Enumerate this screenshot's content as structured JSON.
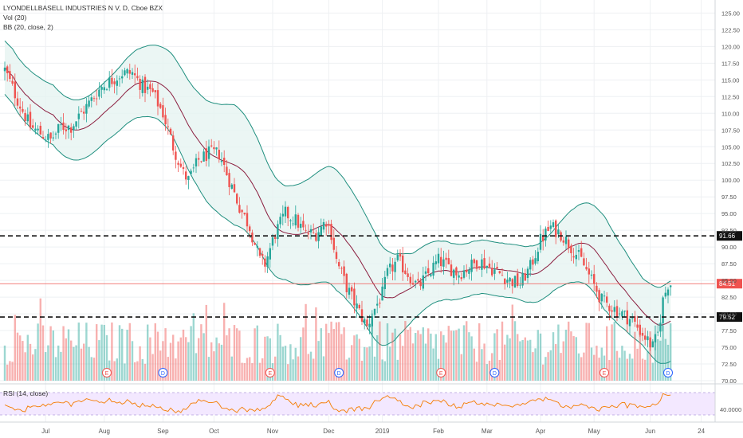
{
  "header": {
    "title": "LYONDELLBASELL INDUSTRIES N V, D, Cboe BZX",
    "vol_label": "Vol (20)",
    "bb_label": "BB (20, close, 2)",
    "rsi_label": "RSI (14, close)"
  },
  "colors": {
    "up": "#26a69a",
    "down": "#ef5350",
    "band": "#1e8e7e",
    "band_fill": "#e6f4f1",
    "basis": "#8b1e3f",
    "rsi_line": "#f57c00",
    "rsi_bg": "#f3e8ff",
    "price_line": "#ef5350"
  },
  "chart_data": {
    "type": "candlestick",
    "y_axis": {
      "range": [
        70,
        126
      ],
      "ticks": [
        "125.00",
        "122.50",
        "120.00",
        "117.50",
        "115.00",
        "112.50",
        "110.00",
        "107.50",
        "105.00",
        "102.50",
        "100.00",
        "97.50",
        "95.00",
        "92.50",
        "90.00",
        "87.50",
        "85.00",
        "82.50",
        "80.00",
        "77.50",
        "75.00",
        "72.50",
        "70.00"
      ],
      "rsi_tick": "40.0000"
    },
    "x_axis": {
      "ticks": [
        {
          "label": "Jul",
          "day": 16
        },
        {
          "label": "Aug",
          "day": 39
        },
        {
          "label": "Sep",
          "day": 62
        },
        {
          "label": "Oct",
          "day": 82
        },
        {
          "label": "Nov",
          "day": 105
        },
        {
          "label": "Dec",
          "day": 127
        },
        {
          "label": "2019",
          "day": 148
        },
        {
          "label": "Feb",
          "day": 170
        },
        {
          "label": "Mar",
          "day": 189
        },
        {
          "label": "Apr",
          "day": 210
        },
        {
          "label": "May",
          "day": 231
        },
        {
          "label": "Jun",
          "day": 253
        },
        {
          "label": "24",
          "day": 273
        }
      ]
    },
    "price_anchors": [
      [
        0,
        116.5
      ],
      [
        5,
        112
      ],
      [
        10,
        108
      ],
      [
        14,
        107
      ],
      [
        18,
        106
      ],
      [
        22,
        108
      ],
      [
        26,
        108
      ],
      [
        30,
        110
      ],
      [
        34,
        112
      ],
      [
        38,
        114
      ],
      [
        42,
        115
      ],
      [
        46,
        116
      ],
      [
        50,
        116
      ],
      [
        54,
        114
      ],
      [
        58,
        113
      ],
      [
        62,
        110
      ],
      [
        66,
        105
      ],
      [
        70,
        101
      ],
      [
        72,
        100
      ],
      [
        76,
        103
      ],
      [
        80,
        104
      ],
      [
        84,
        104
      ],
      [
        88,
        100
      ],
      [
        92,
        96
      ],
      [
        96,
        93
      ],
      [
        100,
        88
      ],
      [
        102,
        87.5
      ],
      [
        106,
        92
      ],
      [
        110,
        95
      ],
      [
        114,
        94
      ],
      [
        118,
        92
      ],
      [
        122,
        92
      ],
      [
        126,
        94
      ],
      [
        128,
        92
      ],
      [
        130,
        88
      ],
      [
        134,
        84
      ],
      [
        138,
        81
      ],
      [
        142,
        78
      ],
      [
        144,
        80
      ],
      [
        148,
        83
      ],
      [
        150,
        86
      ],
      [
        154,
        88
      ],
      [
        158,
        86
      ],
      [
        162,
        84
      ],
      [
        166,
        86
      ],
      [
        170,
        88
      ],
      [
        174,
        87
      ],
      [
        178,
        86
      ],
      [
        182,
        87
      ],
      [
        186,
        88
      ],
      [
        190,
        87
      ],
      [
        194,
        86
      ],
      [
        198,
        85
      ],
      [
        202,
        84.5
      ],
      [
        206,
        87
      ],
      [
        210,
        91
      ],
      [
        214,
        93
      ],
      [
        218,
        92
      ],
      [
        222,
        90
      ],
      [
        226,
        88
      ],
      [
        230,
        85
      ],
      [
        234,
        82
      ],
      [
        238,
        81
      ],
      [
        242,
        80
      ],
      [
        246,
        79
      ],
      [
        250,
        77
      ],
      [
        254,
        75
      ],
      [
        256,
        77
      ],
      [
        258,
        82
      ],
      [
        260,
        84.5
      ]
    ],
    "bb_width_anchors": [
      [
        0,
        4
      ],
      [
        20,
        4.5
      ],
      [
        40,
        4.5
      ],
      [
        60,
        5.5
      ],
      [
        75,
        7
      ],
      [
        90,
        9
      ],
      [
        110,
        7
      ],
      [
        130,
        9
      ],
      [
        145,
        8
      ],
      [
        160,
        5
      ],
      [
        180,
        4
      ],
      [
        200,
        4
      ],
      [
        215,
        4.5
      ],
      [
        235,
        7
      ],
      [
        250,
        5
      ],
      [
        260,
        6
      ]
    ],
    "volume_level": [
      0.35,
      0.42
    ],
    "events": [
      {
        "day": 40,
        "label": "E",
        "kind": "earnings"
      },
      {
        "day": 62,
        "label": "D",
        "kind": "dividend"
      },
      {
        "day": 104,
        "label": "E",
        "kind": "earnings"
      },
      {
        "day": 131,
        "label": "D",
        "kind": "dividend"
      },
      {
        "day": 171,
        "label": "E",
        "kind": "earnings"
      },
      {
        "day": 192,
        "label": "D",
        "kind": "dividend"
      },
      {
        "day": 235,
        "label": "E",
        "kind": "earnings"
      },
      {
        "day": 260,
        "label": "D",
        "kind": "dividend"
      }
    ],
    "levels": [
      {
        "value": 91.66,
        "label": "91.66"
      },
      {
        "value": 79.52,
        "label": "79.52"
      }
    ],
    "last_price": {
      "value": 84.51,
      "label": "84.51"
    },
    "rsi_value_range": [
      30,
      70
    ],
    "grid": true
  }
}
